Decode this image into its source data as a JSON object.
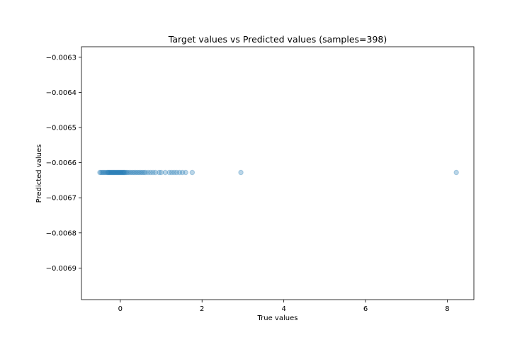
{
  "chart_data": {
    "type": "scatter",
    "title": "Target values vs Predicted values (samples=398)",
    "xlabel": "True values",
    "ylabel": "Predicted values",
    "xlim": [
      -0.95,
      8.65
    ],
    "ylim": [
      -0.00699,
      -0.00627
    ],
    "xticks": [
      0,
      2,
      4,
      6,
      8
    ],
    "xtick_labels": [
      "0",
      "2",
      "4",
      "6",
      "8"
    ],
    "yticks": [
      -0.0063,
      -0.0064,
      -0.0065,
      -0.0066,
      -0.0067,
      -0.0068,
      -0.0069
    ],
    "ytick_labels": [
      "−0.0063",
      "−0.0064",
      "−0.0065",
      "−0.0066",
      "−0.0067",
      "−0.0068",
      "−0.0069"
    ],
    "grid": false,
    "marker_color": "#1f77b4",
    "marker_alpha": 0.3,
    "series": [
      {
        "x": [
          -0.5,
          -0.47,
          -0.44,
          -0.41,
          -0.38,
          -0.35,
          -0.32,
          -0.3,
          -0.28,
          -0.26,
          -0.24,
          -0.22,
          -0.2,
          -0.18,
          -0.16,
          -0.14,
          -0.12,
          -0.1,
          -0.08,
          -0.06,
          -0.04,
          -0.02,
          0.0,
          0.02,
          0.04,
          0.06,
          0.08,
          0.1,
          0.12,
          0.15,
          0.18,
          0.22,
          0.26,
          0.3,
          0.34,
          0.38,
          0.42,
          0.46,
          0.5,
          0.54,
          0.58,
          0.62,
          0.68,
          0.74,
          0.8,
          0.86,
          0.95,
          1.0,
          1.1,
          1.2,
          1.26,
          1.32,
          1.38,
          1.45,
          1.52,
          1.6,
          1.76,
          2.95,
          8.22
        ],
        "y": -0.006628
      }
    ]
  }
}
